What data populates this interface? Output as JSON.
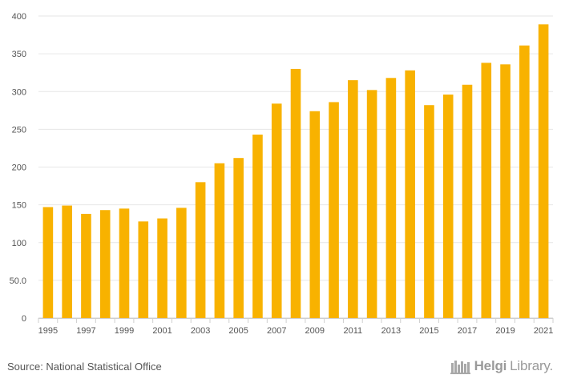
{
  "chart_data": {
    "type": "bar",
    "categories": [
      "1995",
      "1996",
      "1997",
      "1998",
      "1999",
      "2000",
      "2001",
      "2002",
      "2003",
      "2004",
      "2005",
      "2006",
      "2007",
      "2008",
      "2009",
      "2010",
      "2011",
      "2012",
      "2013",
      "2014",
      "2015",
      "2016",
      "2017",
      "2018",
      "2019",
      "2020",
      "2021"
    ],
    "values": [
      147,
      149,
      138,
      143,
      145,
      128,
      132,
      146,
      180,
      205,
      212,
      243,
      284,
      330,
      274,
      286,
      315,
      302,
      318,
      328,
      282,
      296,
      309,
      338,
      336,
      361,
      389
    ],
    "x_tick_labels": [
      "1995",
      "1997",
      "1999",
      "2001",
      "2003",
      "2005",
      "2007",
      "2009",
      "2011",
      "2013",
      "2015",
      "2017",
      "2019",
      "2021"
    ],
    "y_tick_labels": [
      "0",
      "50.0",
      "100",
      "150",
      "200",
      "250",
      "300",
      "350",
      "400"
    ],
    "y_ticks": [
      0,
      50,
      100,
      150,
      200,
      250,
      300,
      350,
      400
    ],
    "ylim": [
      0,
      400
    ],
    "title": "",
    "xlabel": "",
    "ylabel": "",
    "bar_color": "#f8b200",
    "grid_color": "#e6e6e6",
    "grid": true
  },
  "footer": {
    "source": "Source: National Statistical Office",
    "brand_bold": "Helgi",
    "brand_regular": "Library."
  }
}
